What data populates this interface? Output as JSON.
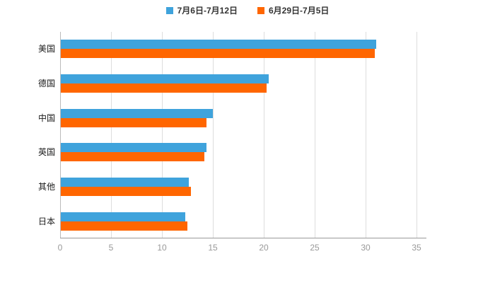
{
  "chart_data": {
    "type": "bar",
    "orientation": "horizontal",
    "title": "",
    "xlabel": "",
    "ylabel": "",
    "categories": [
      "美国",
      "德国",
      "中国",
      "英国",
      "其他",
      "日本"
    ],
    "series": [
      {
        "name": "7月6日-7月12日",
        "color": "#3FA3DC",
        "values": [
          31.0,
          20.4,
          14.9,
          14.3,
          12.6,
          12.2
        ]
      },
      {
        "name": "6月29日-7月5日",
        "color": "#FF6600",
        "values": [
          30.8,
          20.2,
          14.3,
          14.1,
          12.8,
          12.4
        ]
      }
    ],
    "xlim": [
      0,
      35
    ],
    "xticks": [
      0,
      5,
      10,
      15,
      20,
      25,
      30,
      35
    ],
    "grid": true,
    "legend_position": "top",
    "background": "#ffffff"
  },
  "legend": {
    "series1_label": "7月6日-7月12日",
    "series2_label": "6月29日-7月5日"
  },
  "colors": {
    "series1": "#3FA3DC",
    "series2": "#FF6600",
    "gridline": "#dddddd",
    "axis": "#999999",
    "tick_text": "#999999",
    "category_text": "#1a1a1a"
  }
}
